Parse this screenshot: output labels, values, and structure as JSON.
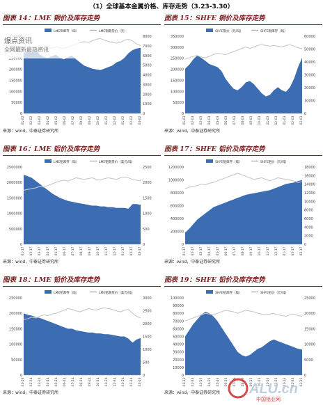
{
  "heading": "（1）全球基本金属价格、库存走势（3.23-3.30）",
  "source_text": "来源：wind，中泰证券研究所",
  "watermark": {
    "line1": "爆点资讯",
    "line2": "全网最新最热资讯"
  },
  "footer_logo": {
    "text": "ALU.cn",
    "sub": "中国铝业网"
  },
  "colors": {
    "fill": "#3c6db3",
    "line": "#c8c8c8",
    "title": "#7a1f1f"
  },
  "panels": [
    {
      "title": "图表 14：LME 铜价及库存走势",
      "legend": [
        "LME铜库存（吨）",
        "LME铜期货价（元）"
      ],
      "left_ticks": [
        "350000",
        "300000",
        "250000",
        "200000",
        "150000",
        "100000",
        "50000",
        "0"
      ],
      "right_ticks": [
        "8000",
        "7000",
        "6000",
        "5000",
        "4000",
        "3000",
        "2000",
        "1000",
        "0"
      ],
      "x_ticks": [
        "01-02",
        "02-02",
        "03-02",
        "04-02",
        "05-02",
        "06-02",
        "07-02",
        "08-02",
        "09-02",
        "10-02",
        "11-02",
        "12-02",
        "01-02",
        "02-02",
        "03-02"
      ],
      "chart_data": {
        "type": "area",
        "stock": [
          0.78,
          0.8,
          0.79,
          0.82,
          0.76,
          0.73,
          0.72,
          0.74,
          0.76,
          0.72,
          0.7,
          0.73,
          0.75,
          0.7,
          0.66,
          0.62,
          0.6,
          0.58,
          0.57,
          0.56,
          0.58,
          0.6,
          0.62,
          0.66,
          0.68,
          0.72,
          0.78,
          0.82,
          0.84,
          0.85
        ],
        "price": [
          0.83,
          0.84,
          0.85,
          0.84,
          0.83,
          0.82,
          0.84,
          0.85,
          0.86,
          0.85,
          0.84,
          0.86,
          0.88,
          0.9,
          0.92,
          0.93,
          0.92,
          0.94,
          0.96,
          0.97,
          0.95,
          0.93,
          0.92,
          0.91,
          0.92,
          0.95,
          0.96,
          0.94,
          0.9,
          0.88
        ]
      }
    },
    {
      "title": "图表 15：SHFE 铜价及库存走势",
      "legend": [
        "SHFE铜价（元/吨）",
        "SHFE铜库存（吨）"
      ],
      "left_ticks": [
        "350000",
        "300000",
        "250000",
        "200000",
        "150000",
        "100000",
        "50000",
        "0"
      ],
      "right_ticks": [
        "60000",
        "50000",
        "40000",
        "30000",
        "20000",
        "10000",
        "0"
      ],
      "x_ticks": [
        "01-03",
        "02-03",
        "03-03",
        "04-03",
        "05-03",
        "06-03",
        "07-03",
        "08-03",
        "09-03",
        "10-03",
        "11-03",
        "12-03",
        "01-03",
        "02-03",
        "03-03"
      ],
      "chart_data": {
        "type": "area",
        "stock": [
          0.58,
          0.63,
          0.7,
          0.75,
          0.72,
          0.68,
          0.64,
          0.62,
          0.6,
          0.55,
          0.45,
          0.38,
          0.32,
          0.3,
          0.34,
          0.4,
          0.42,
          0.38,
          0.32,
          0.26,
          0.22,
          0.24,
          0.3,
          0.34,
          0.3,
          0.28,
          0.34,
          0.45,
          0.6,
          0.72
        ],
        "price": [
          0.7,
          0.72,
          0.74,
          0.75,
          0.73,
          0.72,
          0.74,
          0.76,
          0.78,
          0.77,
          0.76,
          0.78,
          0.8,
          0.82,
          0.84,
          0.86,
          0.84,
          0.86,
          0.88,
          0.89,
          0.88,
          0.87,
          0.88,
          0.87,
          0.86,
          0.88,
          0.89,
          0.87,
          0.85,
          0.84
        ]
      }
    },
    {
      "title": "图表 16：LME 铝价及库存走势",
      "legend": [
        "LME铝库存（吨）",
        "LME铝期货价（美元/吨）"
      ],
      "left_ticks": [
        "2500000",
        "2000000",
        "1500000",
        "1000000",
        "500000",
        "0"
      ],
      "right_ticks": [
        "2500",
        "2000",
        "1500",
        "1000",
        "500",
        "0"
      ],
      "x_ticks": [
        "01-17",
        "02-17",
        "03-17",
        "04-17",
        "05-17",
        "06-17",
        "07-17",
        "08-17",
        "09-17",
        "10-17",
        "11-17",
        "12-17",
        "01-17",
        "02-17",
        "03-17"
      ],
      "chart_data": {
        "type": "area",
        "stock": [
          0.9,
          0.88,
          0.86,
          0.82,
          0.78,
          0.74,
          0.7,
          0.66,
          0.63,
          0.6,
          0.58,
          0.56,
          0.55,
          0.54,
          0.53,
          0.52,
          0.51,
          0.5,
          0.5,
          0.49,
          0.49,
          0.48,
          0.48,
          0.47,
          0.47,
          0.47,
          0.46,
          0.52,
          0.52,
          0.51
        ],
        "price": [
          0.7,
          0.71,
          0.72,
          0.73,
          0.75,
          0.74,
          0.76,
          0.78,
          0.8,
          0.82,
          0.83,
          0.82,
          0.84,
          0.86,
          0.85,
          0.84,
          0.85,
          0.86,
          0.84,
          0.83,
          0.85,
          0.86,
          0.85,
          0.84,
          0.86,
          0.87,
          0.86,
          0.84,
          0.83,
          0.82
        ]
      }
    },
    {
      "title": "图表 17：SHFE 铝价及库存走势",
      "legend": [
        "SHFE铝库存（吨）",
        "SHFE铝价（元/吨）"
      ],
      "left_ticks": [
        "1200000",
        "1000000",
        "800000",
        "600000",
        "400000",
        "200000",
        "0"
      ],
      "right_ticks": [
        "18000",
        "16000",
        "14000",
        "12000",
        "10000",
        "8000",
        "6000",
        "4000",
        "2000",
        "0"
      ],
      "x_ticks": [
        "01-17",
        "02-17",
        "03-17",
        "04-17",
        "05-17",
        "06-17",
        "07-17",
        "08-17",
        "09-17",
        "10-17",
        "11-17",
        "12-17",
        "01-17",
        "02-17",
        "03-17"
      ],
      "chart_data": {
        "type": "area",
        "stock": [
          0.15,
          0.2,
          0.26,
          0.32,
          0.36,
          0.4,
          0.44,
          0.48,
          0.5,
          0.52,
          0.54,
          0.56,
          0.58,
          0.6,
          0.62,
          0.64,
          0.65,
          0.66,
          0.67,
          0.68,
          0.69,
          0.7,
          0.72,
          0.74,
          0.76,
          0.78,
          0.79,
          0.8,
          0.82,
          0.83
        ],
        "price": [
          0.72,
          0.74,
          0.75,
          0.76,
          0.78,
          0.77,
          0.79,
          0.8,
          0.82,
          0.84,
          0.86,
          0.88,
          0.9,
          0.92,
          0.9,
          0.88,
          0.86,
          0.84,
          0.85,
          0.86,
          0.84,
          0.82,
          0.84,
          0.86,
          0.85,
          0.84,
          0.83,
          0.82,
          0.8,
          0.81
        ]
      }
    },
    {
      "title": "图表 18：LME 铅价及库存走势",
      "legend": [
        "LME铅库存（吨）",
        "LME铅期货价（美元/吨）"
      ],
      "left_ticks": [
        "250000",
        "200000",
        "150000",
        "100000",
        "50000",
        "0"
      ],
      "right_ticks": [
        "3000",
        "2500",
        "2000",
        "1500",
        "1000",
        "500",
        "0"
      ],
      "x_ticks": [
        "01-24",
        "02-24",
        "03-24",
        "04-24",
        "05-24",
        "06-24",
        "07-24",
        "08-24",
        "09-24",
        "10-24",
        "11-24",
        "12-24",
        "01-24",
        "02-24",
        "03-24"
      ],
      "chart_data": {
        "type": "area",
        "stock": [
          0.8,
          0.78,
          0.77,
          0.75,
          0.74,
          0.72,
          0.7,
          0.68,
          0.66,
          0.64,
          0.62,
          0.6,
          0.6,
          0.58,
          0.57,
          0.56,
          0.55,
          0.55,
          0.54,
          0.54,
          0.53,
          0.53,
          0.52,
          0.51,
          0.5,
          0.5,
          0.47,
          0.42,
          0.46,
          0.48
        ],
        "price": [
          0.72,
          0.73,
          0.75,
          0.74,
          0.76,
          0.78,
          0.77,
          0.79,
          0.8,
          0.82,
          0.84,
          0.86,
          0.85,
          0.83,
          0.82,
          0.84,
          0.86,
          0.85,
          0.84,
          0.86,
          0.87,
          0.86,
          0.85,
          0.83,
          0.82,
          0.84,
          0.85,
          0.8,
          0.76,
          0.74
        ]
      }
    },
    {
      "title": "图表 19：SHFE 铅价及库存走势",
      "legend": [
        "SHFE铅库存（吨）",
        "SHFE铅价（元/吨）"
      ],
      "left_ticks": [
        "100000",
        "90000",
        "80000",
        "70000",
        "60000",
        "50000",
        "40000",
        "30000",
        "20000",
        "10000",
        "0"
      ],
      "right_ticks": [
        "25000",
        "20000",
        "15000",
        "10000",
        "5000",
        "0"
      ],
      "x_ticks": [
        "01-23",
        "02-23",
        "03-23",
        "04-23",
        "05-23",
        "06-23",
        "07-23",
        "08-23",
        "09-23",
        "10-23",
        "11-23",
        "12-23",
        "01-23",
        "02-23",
        "03-23"
      ],
      "chart_data": {
        "type": "area",
        "stock": [
          0.5,
          0.58,
          0.66,
          0.72,
          0.78,
          0.82,
          0.8,
          0.76,
          0.7,
          0.62,
          0.54,
          0.46,
          0.38,
          0.3,
          0.26,
          0.24,
          0.26,
          0.3,
          0.34,
          0.36,
          0.4,
          0.44,
          0.46,
          0.44,
          0.42,
          0.4,
          0.38,
          0.36,
          0.34,
          0.33
        ],
        "price": [
          0.7,
          0.72,
          0.74,
          0.76,
          0.78,
          0.8,
          0.79,
          0.78,
          0.8,
          0.82,
          0.84,
          0.83,
          0.82,
          0.8,
          0.82,
          0.84,
          0.83,
          0.82,
          0.8,
          0.79,
          0.78,
          0.79,
          0.8,
          0.78,
          0.77,
          0.76,
          0.78,
          0.79,
          0.77,
          0.76
        ]
      }
    }
  ]
}
